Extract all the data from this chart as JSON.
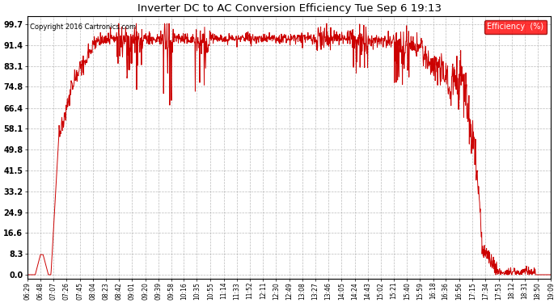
{
  "title": "Inverter DC to AC Conversion Efficiency Tue Sep 6 19:13",
  "copyright": "Copyright 2016 Cartronics.com",
  "legend_label": "Efficiency  (%)",
  "line_color": "#cc0000",
  "bg_color": "#ffffff",
  "grid_color": "#aaaaaa",
  "yticks": [
    0.0,
    8.3,
    16.6,
    24.9,
    33.2,
    41.5,
    49.8,
    58.1,
    66.4,
    74.8,
    83.1,
    91.4,
    99.7
  ],
  "ymin": -1.5,
  "ymax": 103,
  "xtick_labels": [
    "06:29",
    "06:48",
    "07:07",
    "07:26",
    "07:45",
    "08:04",
    "08:23",
    "08:42",
    "09:01",
    "09:20",
    "09:39",
    "09:58",
    "10:16",
    "10:35",
    "10:55",
    "11:14",
    "11:33",
    "11:52",
    "12:11",
    "12:30",
    "12:49",
    "13:08",
    "13:27",
    "13:46",
    "14:05",
    "14:24",
    "14:43",
    "15:02",
    "15:21",
    "15:40",
    "15:59",
    "16:18",
    "16:36",
    "16:56",
    "17:15",
    "17:34",
    "17:53",
    "18:12",
    "18:31",
    "18:50",
    "19:09"
  ],
  "figwidth": 6.9,
  "figheight": 3.75,
  "dpi": 100
}
